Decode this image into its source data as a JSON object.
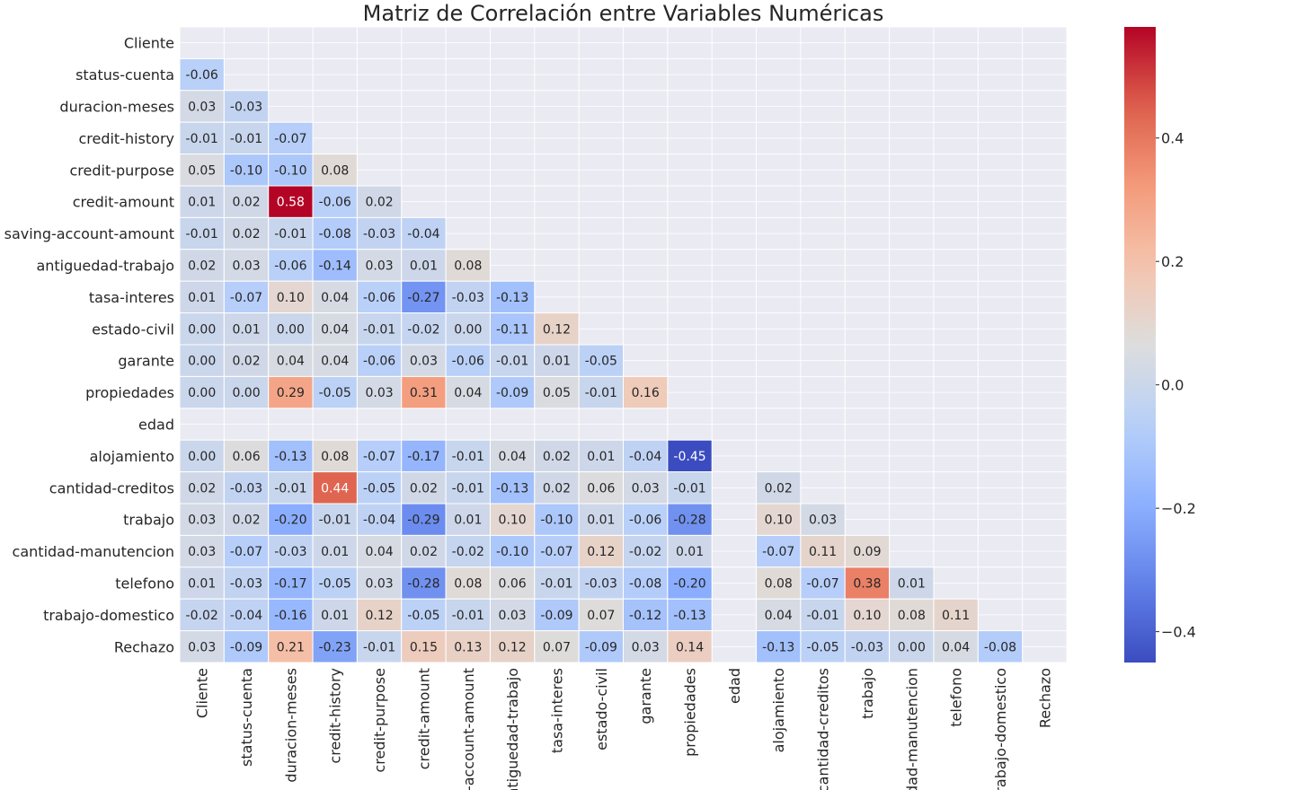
{
  "chart_data": {
    "type": "heatmap",
    "title": "Matriz de Correlación entre Variables Numéricas",
    "variables": [
      "Cliente",
      "status-cuenta",
      "duracion-meses",
      "credit-history",
      "credit-purpose",
      "credit-amount",
      "saving-account-amount",
      "antiguedad-trabajo",
      "tasa-interes",
      "estado-civil",
      "garante",
      "propiedades",
      "edad",
      "alojamiento",
      "cantidad-creditos",
      "trabajo",
      "cantidad-manutencion",
      "telefono",
      "trabajo-domestico",
      "Rechazo"
    ],
    "x_tick_labels": [
      "Cliente",
      "status-cuenta",
      "duracion-meses",
      "credit-history",
      "credit-purpose",
      "credit-amount",
      "g-account-amount",
      "antiguedad-trabajo",
      "tasa-interes",
      "estado-civil",
      "garante",
      "propiedades",
      "edad",
      "alojamiento",
      "cantidad-creditos",
      "trabajo",
      "idad-manutencion",
      "telefono",
      "trabajo-domestico",
      "Rechazo"
    ],
    "mask": "upper-triangle-including-diagonal",
    "lower_triangle_rows": [
      [],
      [
        -0.06
      ],
      [
        0.03,
        -0.03
      ],
      [
        -0.01,
        -0.01,
        -0.07
      ],
      [
        0.05,
        -0.1,
        -0.1,
        0.08
      ],
      [
        0.01,
        0.02,
        0.58,
        -0.06,
        0.02
      ],
      [
        -0.01,
        0.02,
        -0.01,
        -0.08,
        -0.03,
        -0.04
      ],
      [
        0.02,
        0.03,
        -0.06,
        -0.14,
        0.03,
        0.01,
        0.08
      ],
      [
        0.01,
        -0.07,
        0.1,
        0.04,
        -0.06,
        -0.27,
        -0.03,
        -0.13
      ],
      [
        -0.0,
        0.01,
        0.0,
        0.04,
        -0.01,
        -0.02,
        -0.0,
        -0.11,
        0.12
      ],
      [
        -0.0,
        0.02,
        0.04,
        0.04,
        -0.06,
        0.03,
        -0.06,
        -0.01,
        0.01,
        -0.05
      ],
      [
        -0.0,
        -0.0,
        0.29,
        -0.05,
        0.03,
        0.31,
        0.04,
        -0.09,
        0.05,
        -0.01,
        0.16
      ],
      [
        null,
        null,
        null,
        null,
        null,
        null,
        null,
        null,
        null,
        null,
        null,
        null
      ],
      [
        -0.0,
        0.06,
        -0.13,
        0.08,
        -0.07,
        -0.17,
        -0.01,
        0.04,
        0.02,
        0.01,
        -0.04,
        -0.45,
        null
      ],
      [
        0.02,
        -0.03,
        -0.01,
        0.44,
        -0.05,
        0.02,
        -0.01,
        -0.13,
        0.02,
        0.06,
        0.03,
        -0.01,
        null,
        0.02
      ],
      [
        0.03,
        0.02,
        -0.2,
        -0.01,
        -0.04,
        -0.29,
        0.01,
        0.1,
        -0.1,
        0.01,
        -0.06,
        -0.28,
        null,
        0.1,
        0.03
      ],
      [
        0.03,
        -0.07,
        -0.03,
        0.01,
        0.04,
        0.02,
        -0.02,
        -0.1,
        -0.07,
        0.12,
        -0.02,
        0.01,
        null,
        -0.07,
        0.11,
        0.09
      ],
      [
        0.01,
        -0.03,
        -0.17,
        -0.05,
        0.03,
        -0.28,
        0.08,
        0.06,
        -0.01,
        -0.03,
        -0.08,
        -0.2,
        null,
        0.08,
        -0.07,
        0.38,
        0.01
      ],
      [
        -0.02,
        -0.04,
        -0.16,
        0.01,
        0.12,
        -0.05,
        -0.01,
        0.03,
        -0.09,
        0.07,
        -0.12,
        -0.13,
        null,
        0.04,
        -0.01,
        0.1,
        0.08,
        0.11
      ],
      [
        0.03,
        -0.09,
        0.21,
        -0.23,
        -0.01,
        0.15,
        0.13,
        0.12,
        0.07,
        -0.09,
        0.03,
        0.14,
        null,
        -0.13,
        -0.05,
        -0.03,
        -0.0,
        0.04,
        -0.08
      ]
    ],
    "colormap": "coolwarm",
    "value_range": [
      -0.45,
      0.58
    ],
    "colorbar": {
      "ticks": [
        0.4,
        0.2,
        0.0,
        -0.2,
        -0.4
      ],
      "tick_labels": [
        "0.4",
        "0.2",
        "0.0",
        "−0.2",
        "−0.4"
      ]
    },
    "grid": true,
    "background_color": "#eaeaf2",
    "cell_border_color": "#ffffff"
  }
}
